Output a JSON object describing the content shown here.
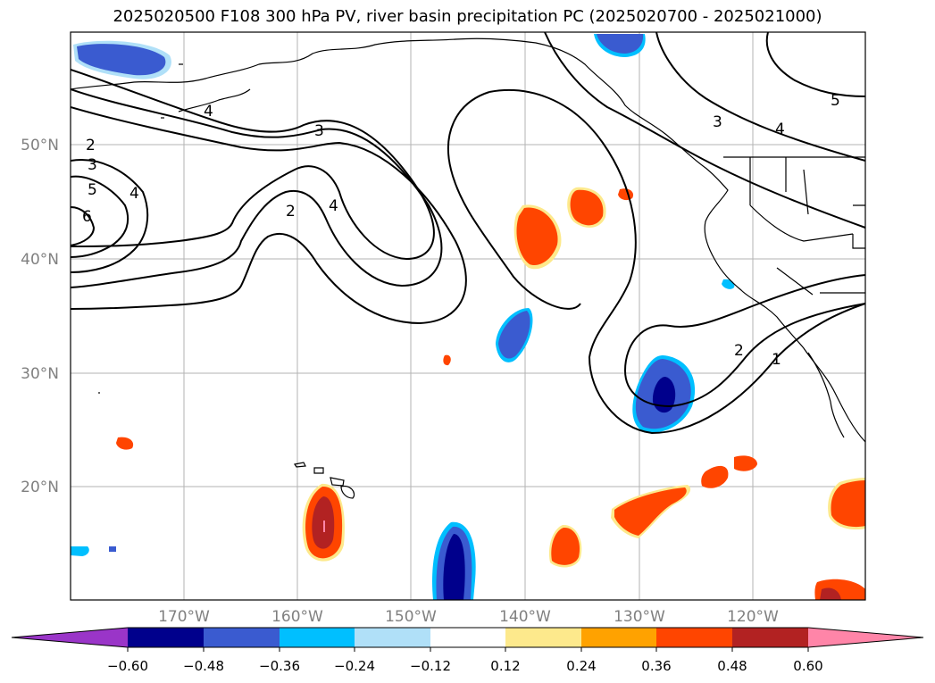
{
  "title": "2025020500 F108 300 hPa PV, river basin precipitation PC (2025020700 - 2025021000)",
  "lat_labels": [
    "50°N",
    "40°N",
    "30°N",
    "20°N"
  ],
  "lon_labels": [
    "170°W",
    "160°W",
    "150°W",
    "140°W",
    "130°W",
    "120°W"
  ],
  "contour_labels": [
    "1",
    "2",
    "3",
    "4",
    "5",
    "6"
  ],
  "colorbar": {
    "ticks": [
      "−0.60",
      "−0.48",
      "−0.36",
      "−0.24",
      "−0.12",
      "0.12",
      "0.24",
      "0.36",
      "0.48",
      "0.60"
    ],
    "colors": [
      "#9a35c8",
      "#00008c",
      "#3a5bd0",
      "#00bfff",
      "#b0e0f8",
      "#ffffff",
      "#fde98c",
      "#ffa200",
      "#ff4500",
      "#b22222",
      "#ff85a8"
    ]
  },
  "colors": {
    "land_line": "#000000",
    "grid": "#b3b3b3",
    "axis_label": "#808080"
  }
}
